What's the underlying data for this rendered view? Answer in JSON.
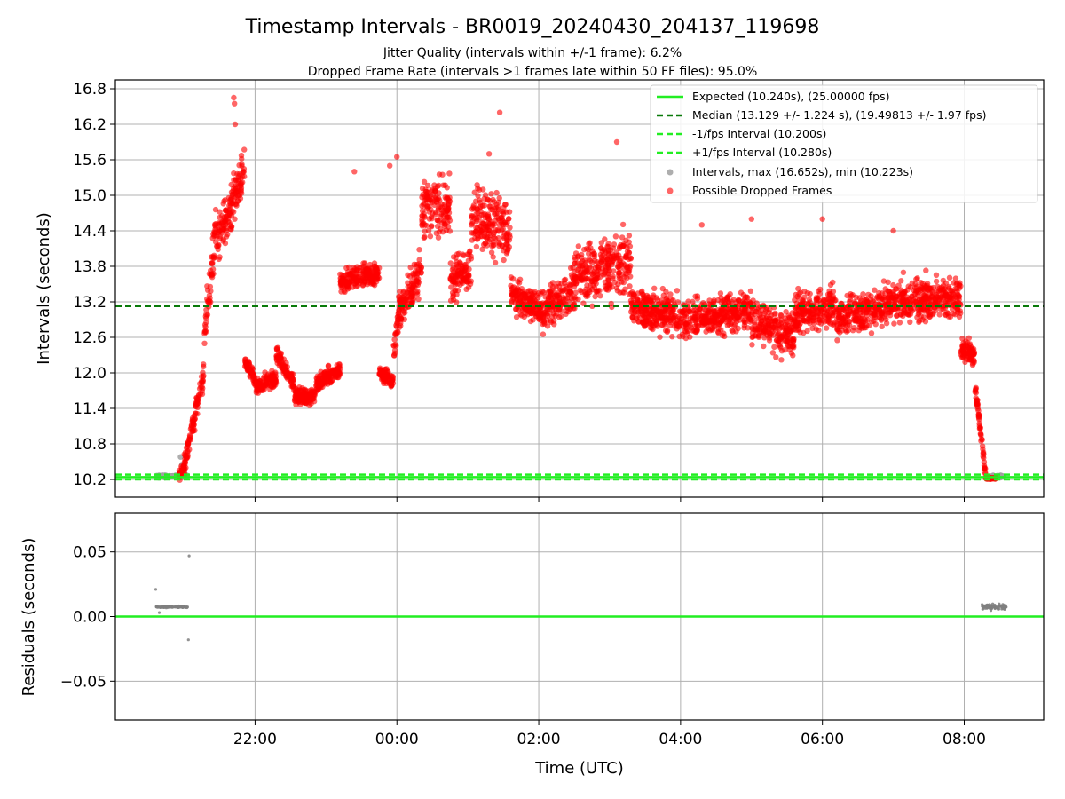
{
  "chart_data": [
    {
      "type": "scatter",
      "title": "Timestamp Intervals - BR0019_20240430_204137_119698",
      "subtitle_lines": [
        "Jitter Quality (intervals within +/-1 frame): 6.2%",
        "Dropped Frame Rate (intervals >1 frames late within 50 FF files): 95.0%"
      ],
      "xlabel": "",
      "ylabel": "Intervals (seconds)",
      "xlim_hours": [
        20.03,
        33.12
      ],
      "ylim": [
        9.9,
        16.95
      ],
      "yticks": [
        10.2,
        10.8,
        11.4,
        12.0,
        12.6,
        13.2,
        13.8,
        14.4,
        15.0,
        15.6,
        16.2,
        16.8
      ],
      "ytick_labels": [
        "10.2",
        "10.8",
        "11.4",
        "12.0",
        "12.6",
        "13.2",
        "13.8",
        "14.4",
        "15.0",
        "15.6",
        "16.2",
        "16.8"
      ],
      "xticks_hours": [
        22,
        24,
        26,
        28,
        30,
        32
      ],
      "grid": true,
      "legend_position": "top-right",
      "reference_lines": [
        {
          "label": "Expected (10.240s), (25.00000 fps)",
          "y": 10.24,
          "style": "solid",
          "color": "#22ee22"
        },
        {
          "label": "Median (13.129 +/- 1.224 s), (19.49813 +/- 1.97 fps)",
          "y": 13.129,
          "style": "dashed",
          "color": "#0a7a0a"
        },
        {
          "label": "-1/fps Interval (10.200s)",
          "y": 10.2,
          "style": "dashed",
          "color": "#22ee22"
        },
        {
          "label": "+1/fps Interval (10.280s)",
          "y": 10.28,
          "style": "dashed",
          "color": "#22ee22"
        }
      ],
      "series": [
        {
          "name": "Intervals, max (16.652s), min (10.223s)",
          "color": "#a0a0a0",
          "segments": [
            {
              "x_start": 20.6,
              "x_end": 21.05,
              "y_center": 10.25,
              "y_spread": 0.03
            },
            {
              "x_start": 32.35,
              "x_end": 32.55,
              "y_center": 10.25,
              "y_spread": 0.03
            }
          ],
          "points": [
            [
              20.95,
              10.58
            ],
            [
              20.97,
              10.45
            ],
            [
              21.0,
              10.33
            ]
          ]
        },
        {
          "name": "Possible Dropped Frames",
          "color": "#ff0000",
          "segments": [
            {
              "x_start": 20.92,
              "x_end": 21.0,
              "y_start": 10.25,
              "y_end": 10.4,
              "spread": 0.12
            },
            {
              "x_start": 21.0,
              "x_end": 21.28,
              "y_start": 10.45,
              "y_end": 12.0,
              "spread": 0.3
            },
            {
              "x_start": 21.28,
              "x_end": 21.45,
              "y_start": 12.6,
              "y_end": 14.5,
              "spread": 0.5
            },
            {
              "x_start": 21.45,
              "x_end": 21.75,
              "y_start": 14.2,
              "y_end": 15.1,
              "spread": 0.55
            },
            {
              "x_start": 21.75,
              "x_end": 21.85,
              "y_start": 15.0,
              "y_end": 15.5,
              "spread": 0.5
            },
            {
              "x_start": 21.85,
              "x_end": 22.0,
              "y_start": 12.2,
              "y_end": 11.9,
              "spread": 0.15
            },
            {
              "x_start": 22.0,
              "x_end": 22.3,
              "y_start": 11.75,
              "y_end": 11.9,
              "spread": 0.22
            },
            {
              "x_start": 22.3,
              "x_end": 22.55,
              "y_start": 12.3,
              "y_end": 11.8,
              "spread": 0.22
            },
            {
              "x_start": 22.55,
              "x_end": 22.85,
              "y_start": 11.6,
              "y_end": 11.6,
              "spread": 0.22
            },
            {
              "x_start": 22.85,
              "x_end": 23.2,
              "y_start": 11.8,
              "y_end": 12.05,
              "spread": 0.22
            },
            {
              "x_start": 23.2,
              "x_end": 23.75,
              "y_start": 13.55,
              "y_end": 13.7,
              "spread": 0.28
            },
            {
              "x_start": 23.75,
              "x_end": 23.95,
              "y_start": 12.0,
              "y_end": 11.85,
              "spread": 0.2
            },
            {
              "x_start": 23.95,
              "x_end": 24.05,
              "y_start": 12.3,
              "y_end": 13.3,
              "spread": 0.5
            },
            {
              "x_start": 24.05,
              "x_end": 24.35,
              "y_start": 13.0,
              "y_end": 13.8,
              "spread": 0.5
            },
            {
              "x_start": 24.35,
              "x_end": 24.75,
              "y_start": 14.8,
              "y_end": 14.8,
              "spread": 0.7
            },
            {
              "x_start": 24.75,
              "x_end": 25.05,
              "y_start": 13.5,
              "y_end": 13.8,
              "spread": 0.55
            },
            {
              "x_start": 25.05,
              "x_end": 25.6,
              "y_start": 14.7,
              "y_end": 14.4,
              "spread": 0.75
            },
            {
              "x_start": 25.6,
              "x_end": 26.0,
              "y_start": 13.3,
              "y_end": 13.1,
              "spread": 0.4
            },
            {
              "x_start": 26.0,
              "x_end": 26.5,
              "y_start": 13.0,
              "y_end": 13.4,
              "spread": 0.5
            },
            {
              "x_start": 26.5,
              "x_end": 27.3,
              "y_start": 13.6,
              "y_end": 13.9,
              "spread": 0.8
            },
            {
              "x_start": 27.3,
              "x_end": 28.2,
              "y_start": 13.1,
              "y_end": 12.9,
              "spread": 0.5
            },
            {
              "x_start": 28.2,
              "x_end": 29.0,
              "y_start": 12.9,
              "y_end": 13.1,
              "spread": 0.45
            },
            {
              "x_start": 29.0,
              "x_end": 29.6,
              "y_start": 12.9,
              "y_end": 12.6,
              "spread": 0.5
            },
            {
              "x_start": 29.6,
              "x_end": 30.2,
              "y_start": 13.0,
              "y_end": 13.1,
              "spread": 0.5
            },
            {
              "x_start": 30.2,
              "x_end": 31.0,
              "y_start": 12.9,
              "y_end": 13.2,
              "spread": 0.5
            },
            {
              "x_start": 31.0,
              "x_end": 31.95,
              "y_start": 13.2,
              "y_end": 13.3,
              "spread": 0.5
            },
            {
              "x_start": 31.95,
              "x_end": 32.15,
              "y_start": 12.4,
              "y_end": 12.3,
              "spread": 0.3
            },
            {
              "x_start": 32.15,
              "x_end": 32.3,
              "y_start": 11.8,
              "y_end": 10.3,
              "spread": 0.15
            },
            {
              "x_start": 32.3,
              "x_end": 32.45,
              "y_start": 10.22,
              "y_end": 10.22,
              "spread": 0.02
            }
          ],
          "points": [
            [
              21.7,
              16.65
            ],
            [
              21.71,
              16.55
            ],
            [
              21.72,
              16.2
            ],
            [
              25.45,
              16.4
            ],
            [
              27.1,
              15.9
            ],
            [
              25.3,
              15.7
            ],
            [
              24.0,
              15.65
            ],
            [
              23.9,
              15.5
            ],
            [
              23.4,
              15.4
            ],
            [
              28.3,
              14.5
            ],
            [
              29.0,
              14.6
            ],
            [
              30.0,
              14.6
            ],
            [
              31.0,
              14.4
            ]
          ]
        }
      ]
    },
    {
      "type": "scatter",
      "title": "",
      "xlabel": "Time (UTC)",
      "ylabel": "Residuals (seconds)",
      "xlim_hours": [
        20.03,
        33.12
      ],
      "ylim": [
        -0.08,
        0.08
      ],
      "yticks": [
        -0.05,
        0.0,
        0.05
      ],
      "ytick_labels": [
        "−0.05",
        "0.00",
        "0.05"
      ],
      "xticks_hours": [
        22,
        24,
        26,
        28,
        30,
        32
      ],
      "xtick_labels": [
        "22:00",
        "00:00",
        "02:00",
        "04:00",
        "06:00",
        "08:00"
      ],
      "grid": true,
      "reference_lines": [
        {
          "y": 0.0,
          "style": "solid",
          "color": "#22ee22"
        }
      ],
      "series": [
        {
          "color": "#7f7f7f",
          "segments": [
            {
              "x_start": 20.6,
              "x_end": 21.05,
              "y_center": 0.0075,
              "y_spread": 0.001
            },
            {
              "x_start": 32.25,
              "x_end": 32.6,
              "y_center": 0.0075,
              "y_spread": 0.0035
            }
          ],
          "points": [
            [
              20.6,
              0.021
            ],
            [
              21.07,
              0.047
            ],
            [
              21.06,
              -0.018
            ],
            [
              20.65,
              0.003
            ]
          ]
        }
      ]
    }
  ]
}
